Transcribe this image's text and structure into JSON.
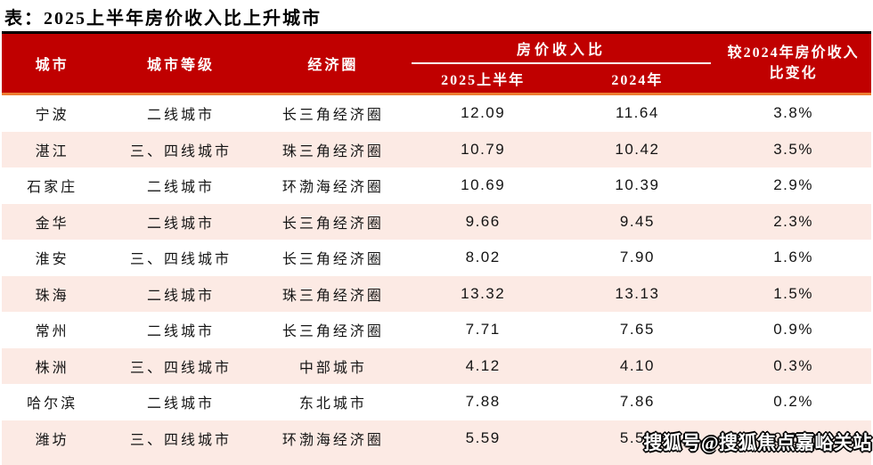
{
  "title": "表：2025上半年房价收入比上升城市",
  "header": {
    "city": "城市",
    "tier": "城市等级",
    "region": "经济圈",
    "ratio_group": "房价收入比",
    "h1_2025": "2025上半年",
    "y2024": "2024年",
    "change_line1": "较2024年房价收入",
    "change_line2": "比变化"
  },
  "chart_data": {
    "type": "table",
    "title": "表：2025上半年房价收入比上升城市",
    "columns": [
      "城市",
      "城市等级",
      "经济圈",
      "房价收入比 2025上半年",
      "房价收入比 2024年",
      "较2024年房价收入比变化"
    ],
    "rows": [
      [
        "宁波",
        "二线城市",
        "长三角经济圈",
        "12.09",
        "11.64",
        "3.8%"
      ],
      [
        "湛江",
        "三、四线城市",
        "珠三角经济圈",
        "10.79",
        "10.42",
        "3.5%"
      ],
      [
        "石家庄",
        "二线城市",
        "环渤海经济圈",
        "10.69",
        "10.39",
        "2.9%"
      ],
      [
        "金华",
        "二线城市",
        "长三角经济圈",
        "9.66",
        "9.45",
        "2.3%"
      ],
      [
        "淮安",
        "三、四线城市",
        "长三角经济圈",
        "8.02",
        "7.90",
        "1.6%"
      ],
      [
        "珠海",
        "二线城市",
        "珠三角经济圈",
        "13.32",
        "13.13",
        "1.5%"
      ],
      [
        "常州",
        "二线城市",
        "长三角经济圈",
        "7.71",
        "7.65",
        "0.9%"
      ],
      [
        "株洲",
        "三、四线城市",
        "中部城市",
        "4.12",
        "4.10",
        "0.3%"
      ],
      [
        "哈尔滨",
        "二线城市",
        "东北城市",
        "7.88",
        "7.86",
        "0.2%"
      ],
      [
        "潍坊",
        "三、四线城市",
        "环渤海经济圈",
        "5.59",
        "5.58",
        "0.2%"
      ]
    ]
  },
  "watermark": "搜狐号@搜狐焦点嘉峪关站",
  "colors": {
    "header_red": "#C00000",
    "header_top_line": "#000000",
    "header_bottom_line": "#ED7D31",
    "row_alt_pink": "#FCEAE4",
    "body_text": "#141414",
    "header_text": "#FFFFFF"
  }
}
